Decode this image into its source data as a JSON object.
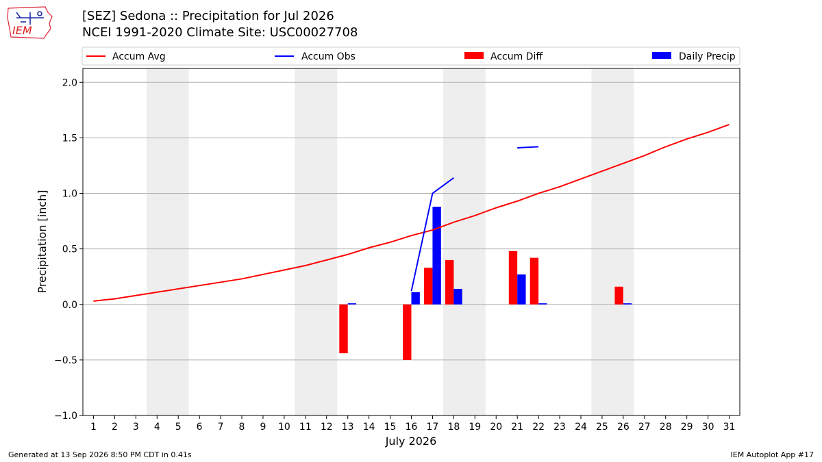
{
  "header": {
    "title": "[SEZ] Sedona :: Precipitation for Jul 2026",
    "subtitle": "NCEI 1991-2020 Climate Site: USC00027708",
    "logo_text": "IEM"
  },
  "footer": {
    "generated": "Generated at 13 Sep 2026 8:50 PM CDT in 0.41s",
    "app": "IEM Autoplot App #17"
  },
  "colors": {
    "avg": "#ff0000",
    "obs": "#0000ff",
    "diff": "#ff0000",
    "daily": "#0000ff",
    "weekend": "#eeeeee",
    "grid": "#b0b0b0"
  },
  "chart_data": {
    "type": "bar",
    "xlabel": "July 2026",
    "ylabel": "Precipitation [inch]",
    "xlim": [
      0.5,
      31.5
    ],
    "ylim": [
      -1.0,
      2.125
    ],
    "yticks": [
      -1.0,
      -0.5,
      0.0,
      0.5,
      1.0,
      1.5,
      2.0
    ],
    "ytick_labels": [
      "−1.0",
      "−0.5",
      "0.0",
      "0.5",
      "1.0",
      "1.5",
      "2.0"
    ],
    "x": [
      1,
      2,
      3,
      4,
      5,
      6,
      7,
      8,
      9,
      10,
      11,
      12,
      13,
      14,
      15,
      16,
      17,
      18,
      19,
      20,
      21,
      22,
      23,
      24,
      25,
      26,
      27,
      28,
      29,
      30,
      31
    ],
    "x_tick_labels": [
      "1",
      "2",
      "3",
      "4",
      "5",
      "6",
      "7",
      "8",
      "9",
      "10",
      "11",
      "12",
      "13",
      "14",
      "15",
      "16",
      "17",
      "18",
      "19",
      "20",
      "21",
      "22",
      "23",
      "24",
      "25",
      "26",
      "27",
      "28",
      "29",
      "30",
      "31"
    ],
    "weekend_spans": [
      [
        3.5,
        5.5
      ],
      [
        10.5,
        12.5
      ],
      [
        17.5,
        19.5
      ],
      [
        24.5,
        26.5
      ]
    ],
    "grid": "y",
    "legend": {
      "placement": "top",
      "entries": [
        "Accum Avg",
        "Accum Obs",
        "Accum Diff",
        "Daily Precip"
      ]
    },
    "series": [
      {
        "name": "Accum Avg",
        "kind": "line",
        "values": [
          0.03,
          0.05,
          0.08,
          0.11,
          0.14,
          0.17,
          0.2,
          0.23,
          0.27,
          0.31,
          0.35,
          0.4,
          0.45,
          0.51,
          0.56,
          0.62,
          0.67,
          0.74,
          0.8,
          0.87,
          0.93,
          1.0,
          1.06,
          1.13,
          1.2,
          1.27,
          1.34,
          1.42,
          1.49,
          1.55,
          1.62
        ]
      },
      {
        "name": "Accum Obs",
        "kind": "line",
        "values": [
          null,
          null,
          null,
          null,
          null,
          null,
          null,
          null,
          null,
          null,
          null,
          null,
          null,
          null,
          null,
          0.12,
          1.0,
          1.14,
          null,
          null,
          1.41,
          1.42,
          null,
          null,
          null,
          null,
          null,
          null,
          null,
          null,
          null
        ]
      },
      {
        "name": "Accum Diff",
        "kind": "bar",
        "values": [
          null,
          null,
          null,
          null,
          null,
          null,
          null,
          null,
          null,
          null,
          null,
          null,
          -0.44,
          null,
          null,
          -0.5,
          0.33,
          0.4,
          null,
          null,
          0.48,
          0.42,
          null,
          null,
          null,
          0.16,
          null,
          null,
          null,
          null,
          null
        ]
      },
      {
        "name": "Daily Precip",
        "kind": "bar",
        "values": [
          null,
          null,
          null,
          null,
          null,
          null,
          null,
          null,
          null,
          null,
          null,
          null,
          0.01,
          null,
          null,
          0.11,
          0.88,
          0.14,
          null,
          null,
          0.27,
          0.01,
          null,
          null,
          null,
          0.01,
          null,
          null,
          null,
          null,
          null
        ]
      }
    ]
  }
}
